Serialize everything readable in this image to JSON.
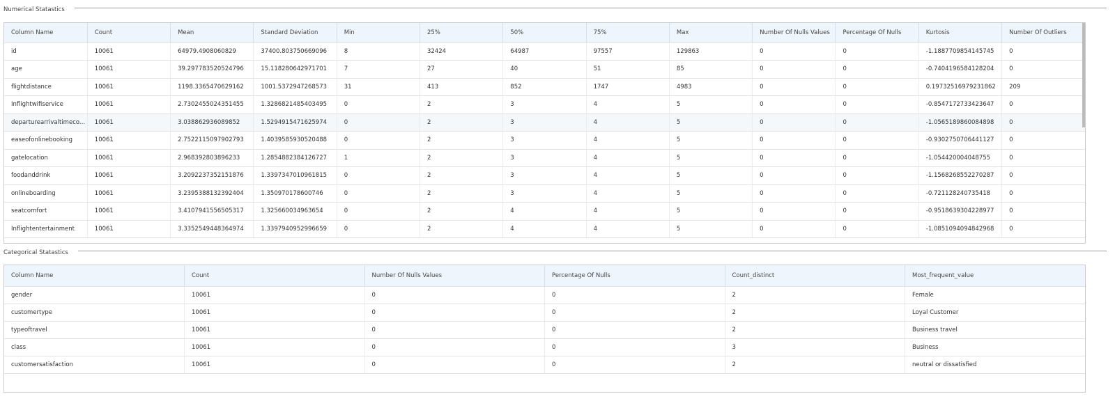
{
  "numerical": {
    "title": "Numerical Statastics",
    "columns": [
      "Column Name",
      "Count",
      "Mean",
      "Standard Deviation",
      "Min",
      "25%",
      "50%",
      "75%",
      "Max",
      "Number Of Nulls Values",
      "Percentage Of Nulls",
      "Kurtosis",
      "Number Of Outliers"
    ],
    "rows": [
      [
        "id",
        "10061",
        "64979.4908060829",
        "37400.803750669096",
        "8",
        "32424",
        "64987",
        "97557",
        "129863",
        "0",
        "0",
        "-1.1887709854145745",
        "0"
      ],
      [
        "age",
        "10061",
        "39.297783520524796",
        "15.118280642971701",
        "7",
        "27",
        "40",
        "51",
        "85",
        "0",
        "0",
        "-0.7404196584128204",
        "0"
      ],
      [
        "flightdistance",
        "10061",
        "1198.3365470629162",
        "1001.5372947268573",
        "31",
        "413",
        "852",
        "1747",
        "4983",
        "0",
        "0",
        "0.19732516979231862",
        "209"
      ],
      [
        "Inflightwifiservice",
        "10061",
        "2.7302455024351455",
        "1.3286821485403495",
        "0",
        "2",
        "3",
        "4",
        "5",
        "0",
        "0",
        "-0.8547172733423647",
        "0"
      ],
      [
        "departurearrivaltimeco...",
        "10061",
        "3.038862936089852",
        "1.5294915471625974",
        "0",
        "2",
        "3",
        "4",
        "5",
        "0",
        "0",
        "-1.0565189860084898",
        "0"
      ],
      [
        "easeofonlinebooking",
        "10061",
        "2.7522115097902793",
        "1.4039585930520488",
        "0",
        "2",
        "3",
        "4",
        "5",
        "0",
        "0",
        "-0.9302750706441127",
        "0"
      ],
      [
        "gatelocation",
        "10061",
        "2.968392803896233",
        "1.2854882384126727",
        "1",
        "2",
        "3",
        "4",
        "5",
        "0",
        "0",
        "-1.054420004048755",
        "0"
      ],
      [
        "foodanddrink",
        "10061",
        "3.2092237352151876",
        "1.3397347010961815",
        "0",
        "2",
        "3",
        "4",
        "5",
        "0",
        "0",
        "-1.1568268552270287",
        "0"
      ],
      [
        "onlineboarding",
        "10061",
        "3.2395388132392404",
        "1.350970178600746",
        "0",
        "2",
        "3",
        "4",
        "5",
        "0",
        "0",
        "-0.721128240735418",
        "0"
      ],
      [
        "seatcomfort",
        "10061",
        "3.4107941556505317",
        "1.325660034963654",
        "0",
        "2",
        "4",
        "4",
        "5",
        "0",
        "0",
        "-0.9518639304228977",
        "0"
      ],
      [
        "Inflightentertainment",
        "10061",
        "3.3352549448364974",
        "1.3397940952996659",
        "0",
        "2",
        "4",
        "4",
        "5",
        "0",
        "0",
        "-1.0851094094842968",
        "0"
      ]
    ]
  },
  "categorical": {
    "title": "Categorical Statastics",
    "columns": [
      "Column Name",
      "Count",
      "Number Of Nulls Values",
      "Percentage Of Nulls",
      "Count_distinct",
      "Most_frequent_value"
    ],
    "rows": [
      [
        "gender",
        "10061",
        "0",
        "0",
        "2",
        "Female"
      ],
      [
        "customertype",
        "10061",
        "0",
        "0",
        "2",
        "Loyal Customer"
      ],
      [
        "typeoftravel",
        "10061",
        "0",
        "0",
        "2",
        "Business travel"
      ],
      [
        "class",
        "10061",
        "0",
        "0",
        "3",
        "Business"
      ],
      [
        "customersatisfaction",
        "10061",
        "0",
        "0",
        "2",
        "neutral or dissatisfied"
      ]
    ]
  }
}
